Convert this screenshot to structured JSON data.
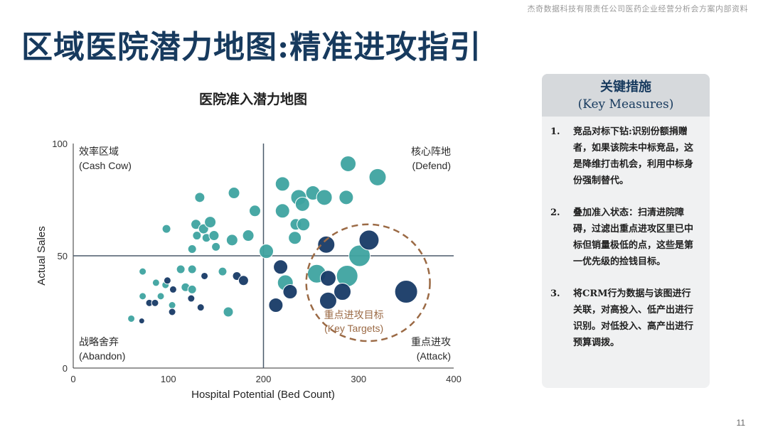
{
  "header_note": "杰奇数据科技有限责任公司医药企业经营分析会方案内部资料",
  "page_title": "区域医院潜力地图:精准进攻指引",
  "page_number": "11",
  "colors": {
    "teal": "#3ea3a0",
    "navy": "#173a66",
    "title": "#173a5e",
    "target_ring": "#9b6a45"
  },
  "side_panel": {
    "title": "关键措施",
    "subtitle": "(Key Measures)",
    "items": [
      {
        "num": "1.",
        "text": "竞品对标下钻:识别份额捐赠者，如果该院未中标竞品，这是降维打击机会，利用中标身份强制替代。"
      },
      {
        "num": "2.",
        "text": "叠加准入状态：扫清进院障碍，过滤出重点进攻区里已中标但销量极低的点，这些是第一优先级的捡钱目标。"
      },
      {
        "num": "3.",
        "text": "将CRM行为数据与该图进行关联，对高投入、低产出进行识别。对低投入、高产出进行预算调拨。"
      }
    ]
  },
  "chart_data": {
    "type": "scatter",
    "title": "医院准入潜力地图",
    "xlabel": "Hospital Potential (Bed Count)",
    "ylabel": "Actual Sales",
    "xlim": [
      0,
      400
    ],
    "ylim": [
      0,
      100
    ],
    "xticks": [
      0,
      100,
      200,
      300,
      400
    ],
    "yticks": [
      0,
      50,
      100
    ],
    "grid": false,
    "dividers": {
      "x": 200,
      "y": 50
    },
    "quadrants": [
      {
        "label": "效率区域",
        "sublabel": "(Cash Cow)",
        "position": "top-left"
      },
      {
        "label": "核心阵地",
        "sublabel": "(Defend)",
        "position": "top-right"
      },
      {
        "label": "战略舍弃",
        "sublabel": "(Abandon)",
        "position": "bottom-left"
      },
      {
        "label": "重点进攻",
        "sublabel": "(Attack)",
        "position": "bottom-right"
      }
    ],
    "target_zone": {
      "label": "重点进攻目标",
      "sublabel": "(Key Targets)",
      "cx": 310,
      "cy": 38,
      "rx": 65,
      "ry": 26
    },
    "series": [
      {
        "color": "teal",
        "points": [
          [
            61,
            22,
            5
          ],
          [
            73,
            32,
            5
          ],
          [
            73,
            43,
            5
          ],
          [
            87,
            38,
            5
          ],
          [
            92,
            32,
            5
          ],
          [
            97,
            37,
            5
          ],
          [
            98,
            62,
            6
          ],
          [
            104,
            28,
            5
          ],
          [
            113,
            44,
            6
          ],
          [
            118,
            36,
            6
          ],
          [
            125,
            35,
            6
          ],
          [
            125,
            53,
            6
          ],
          [
            125,
            44,
            6
          ],
          [
            129,
            64,
            7
          ],
          [
            130,
            59,
            6
          ],
          [
            133,
            76,
            7
          ],
          [
            137,
            62,
            7
          ],
          [
            140,
            58,
            6
          ],
          [
            144,
            65,
            8
          ],
          [
            148,
            59,
            7
          ],
          [
            150,
            54,
            6
          ],
          [
            157,
            43,
            6
          ],
          [
            163,
            25,
            7
          ],
          [
            167,
            57,
            8
          ],
          [
            169,
            78,
            8
          ],
          [
            184,
            59,
            8
          ],
          [
            191,
            70,
            8
          ],
          [
            203,
            52,
            10
          ],
          [
            220,
            82,
            10
          ],
          [
            220,
            70,
            10
          ],
          [
            223,
            38,
            11
          ],
          [
            233,
            58,
            9
          ],
          [
            234,
            64,
            8
          ],
          [
            237,
            76,
            11
          ],
          [
            241,
            73,
            10
          ],
          [
            242,
            64,
            9
          ],
          [
            252,
            78,
            10
          ],
          [
            256,
            42,
            13
          ],
          [
            264,
            76,
            11
          ],
          [
            287,
            76,
            10
          ],
          [
            289,
            91,
            11
          ],
          [
            288,
            41,
            15
          ],
          [
            301,
            50,
            15
          ],
          [
            320,
            85,
            12
          ]
        ]
      },
      {
        "color": "navy",
        "points": [
          [
            72,
            21,
            4
          ],
          [
            80,
            29,
            5
          ],
          [
            86,
            29,
            5
          ],
          [
            99,
            39,
            5
          ],
          [
            104,
            25,
            5
          ],
          [
            105,
            35,
            5
          ],
          [
            124,
            31,
            5
          ],
          [
            134,
            27,
            5
          ],
          [
            138,
            41,
            5
          ],
          [
            172,
            41,
            6
          ],
          [
            179,
            39,
            7
          ],
          [
            213,
            28,
            10
          ],
          [
            218,
            45,
            10
          ],
          [
            228,
            34,
            10
          ],
          [
            266,
            55,
            12
          ],
          [
            268,
            40,
            11
          ],
          [
            268,
            30,
            12
          ],
          [
            283,
            34,
            12
          ],
          [
            311,
            57,
            14
          ],
          [
            350,
            34,
            16
          ]
        ]
      }
    ]
  }
}
